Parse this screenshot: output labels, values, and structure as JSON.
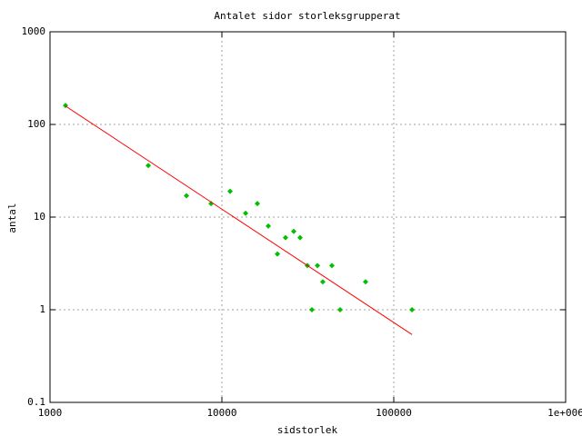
{
  "chart_data": {
    "type": "scatter",
    "title": "Antalet sidor storleksgrupperat",
    "x_label": "sidstorlek",
    "y_label": "antal",
    "log_x": true,
    "log_y": true,
    "grid": true,
    "xlim": [
      1000,
      1000000
    ],
    "xticks": [
      1000,
      10000,
      100000,
      {
        "value": 1000000,
        "label": "1e+006"
      }
    ],
    "ylim": [
      0.1,
      1000
    ],
    "yticks": [
      0.1,
      1,
      10,
      100,
      1000
    ],
    "series": [
      {
        "color": "#00c000",
        "mode": "points",
        "x": [
          1230,
          3730,
          6220,
          8650,
          11160,
          13740,
          16080,
          18620,
          21030,
          23450,
          26180,
          28510,
          31420,
          33400,
          35960,
          38650,
          43650,
          48740,
          68550,
          127700
        ],
        "values": [
          160,
          36,
          17,
          14,
          19,
          11,
          14,
          8,
          4,
          6,
          7,
          6,
          3,
          1,
          3,
          2,
          3,
          1,
          2,
          1
        ]
      },
      {
        "color": "#ff0000",
        "mode": "line",
        "x": [
          1230,
          127700
        ],
        "values": [
          158,
          0.54
        ]
      }
    ]
  }
}
